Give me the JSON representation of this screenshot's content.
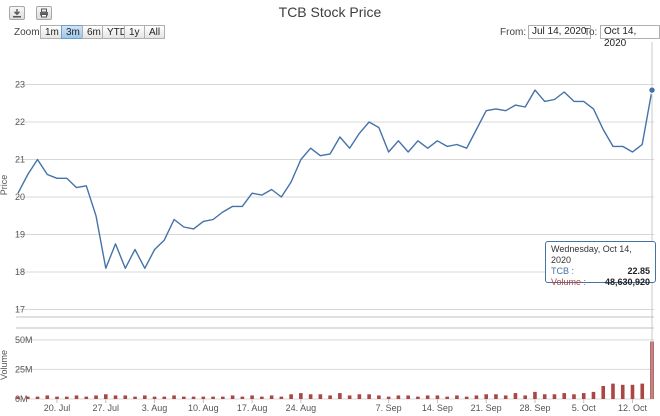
{
  "title": "TCB Stock Price",
  "toolbar": {
    "download_icon": "download-icon",
    "print_icon": "print-icon"
  },
  "range_selector": {
    "zoom_label": "Zoom",
    "buttons": [
      "1m",
      "3m",
      "6m",
      "YTD",
      "1y",
      "All"
    ],
    "active": "3m",
    "from_label": "From:",
    "from_value": "Jul 14, 2020",
    "to_label": "To:",
    "to_value": "Oct 14, 2020"
  },
  "tooltip": {
    "date": "Wednesday, Oct 14, 2020",
    "price_label": "TCB :",
    "price_value": "22.85",
    "volume_label": "Volume :",
    "volume_value": "48,630,920"
  },
  "colors": {
    "price_line": "#4572a7",
    "volume_bar": "#aa4643",
    "tooltip_border": "#4572a7"
  },
  "chart_data": {
    "type": "line",
    "title": "TCB Stock Price",
    "price_axis": {
      "label": "Price",
      "range": [
        16.8,
        24.0
      ],
      "ticks": [
        17,
        18,
        19,
        20,
        21,
        22,
        23
      ]
    },
    "volume_axis": {
      "label": "Volume",
      "ticks": [
        "0M",
        "25M",
        "50M"
      ],
      "range": [
        0,
        60
      ]
    },
    "x_ticks": [
      "20. Jul",
      "27. Jul",
      "3. Aug",
      "10. Aug",
      "17. Aug",
      "24. Aug",
      "7. Sep",
      "14. Sep",
      "21. Sep",
      "28. Sep",
      "5. Oct",
      "12. Oct"
    ],
    "grid": true,
    "series": [
      {
        "name": "TCB",
        "x": [
          "2020-07-14",
          "2020-07-15",
          "2020-07-16",
          "2020-07-17",
          "2020-07-20",
          "2020-07-21",
          "2020-07-22",
          "2020-07-23",
          "2020-07-24",
          "2020-07-27",
          "2020-07-28",
          "2020-07-29",
          "2020-07-30",
          "2020-07-31",
          "2020-08-03",
          "2020-08-04",
          "2020-08-05",
          "2020-08-06",
          "2020-08-07",
          "2020-08-10",
          "2020-08-11",
          "2020-08-12",
          "2020-08-13",
          "2020-08-14",
          "2020-08-17",
          "2020-08-18",
          "2020-08-19",
          "2020-08-20",
          "2020-08-21",
          "2020-08-24",
          "2020-08-25",
          "2020-08-26",
          "2020-08-27",
          "2020-08-28",
          "2020-08-31",
          "2020-09-01",
          "2020-09-03",
          "2020-09-04",
          "2020-09-07",
          "2020-09-08",
          "2020-09-09",
          "2020-09-10",
          "2020-09-11",
          "2020-09-14",
          "2020-09-15",
          "2020-09-16",
          "2020-09-17",
          "2020-09-18",
          "2020-09-21",
          "2020-09-22",
          "2020-09-23",
          "2020-09-24",
          "2020-09-25",
          "2020-09-28",
          "2020-09-29",
          "2020-09-30",
          "2020-10-01",
          "2020-10-02",
          "2020-10-05",
          "2020-10-06",
          "2020-10-07",
          "2020-10-08",
          "2020-10-09",
          "2020-10-12",
          "2020-10-13",
          "2020-10-14"
        ],
        "values": [
          20.1,
          20.6,
          21.0,
          20.6,
          20.5,
          20.5,
          20.25,
          20.3,
          19.5,
          18.1,
          18.75,
          18.1,
          18.6,
          18.1,
          18.6,
          18.85,
          19.4,
          19.2,
          19.15,
          19.35,
          19.4,
          19.6,
          19.75,
          19.75,
          20.1,
          20.05,
          20.2,
          20.0,
          20.4,
          21.0,
          21.3,
          21.1,
          21.15,
          21.6,
          21.3,
          21.7,
          22.0,
          21.85,
          21.2,
          21.5,
          21.2,
          21.5,
          21.3,
          21.5,
          21.35,
          21.4,
          21.3,
          21.8,
          22.3,
          22.35,
          22.3,
          22.45,
          22.4,
          22.85,
          22.55,
          22.6,
          22.8,
          22.55,
          22.55,
          22.35,
          21.8,
          21.35,
          21.35,
          21.2,
          21.4,
          22.85
        ]
      },
      {
        "name": "Volume",
        "values_millions": [
          2,
          2,
          2,
          3,
          2,
          2,
          3,
          2,
          3,
          4,
          3,
          3,
          2,
          3,
          2,
          2,
          3,
          2,
          2,
          2,
          2,
          2,
          3,
          2,
          3,
          2,
          3,
          2,
          4,
          5,
          4,
          4,
          3,
          5,
          3,
          4,
          4,
          3,
          2,
          3,
          3,
          2,
          3,
          3,
          2,
          3,
          2,
          3,
          4,
          4,
          3,
          5,
          3,
          6,
          4,
          4,
          5,
          4,
          5,
          6,
          11,
          13,
          12,
          12,
          13,
          48.63
        ]
      }
    ]
  }
}
